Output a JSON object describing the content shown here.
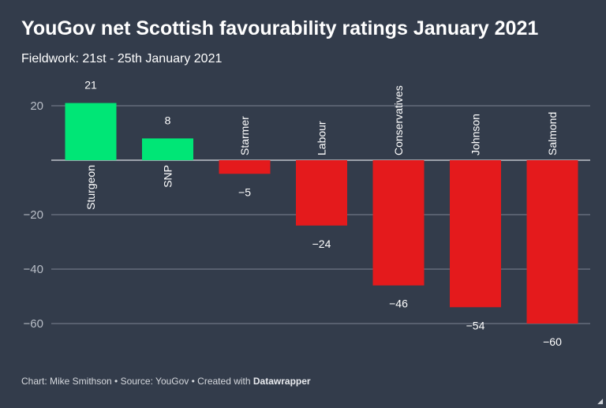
{
  "header": {
    "title": "YouGov net Scottish favourability ratings January 2021",
    "subtitle": "Fieldwork: 21st - 25th January 2021"
  },
  "footer": {
    "prefix": "Chart: Mike Smithson • Source: YouGov • Created with ",
    "brand": "Datawrapper"
  },
  "colors": {
    "background": "#333c4b",
    "positive": "#00e676",
    "negative": "#e41a1c",
    "grid": "#7c8593",
    "text": "#ffffff",
    "axis_text": "#b9bec7"
  },
  "chart_data": {
    "type": "bar",
    "title": "YouGov net Scottish favourability ratings January 2021",
    "subtitle": "Fieldwork: 21st - 25th January 2021",
    "categories": [
      "Sturgeon",
      "SNP",
      "Starmer",
      "Labour",
      "Conservatives",
      "Johnson",
      "Salmond"
    ],
    "values": [
      21,
      8,
      -5,
      -24,
      -46,
      -54,
      -60
    ],
    "value_labels": [
      "21",
      "8",
      "−5",
      "−24",
      "−46",
      "−54",
      "−60"
    ],
    "yticks": [
      20,
      0,
      -20,
      -40,
      -60
    ],
    "ytick_labels": [
      "20",
      "",
      "−20",
      "−40",
      "−60"
    ],
    "ylim": [
      -60,
      20
    ],
    "xlabel": "",
    "ylabel": "",
    "grid": true,
    "legend": "none"
  }
}
